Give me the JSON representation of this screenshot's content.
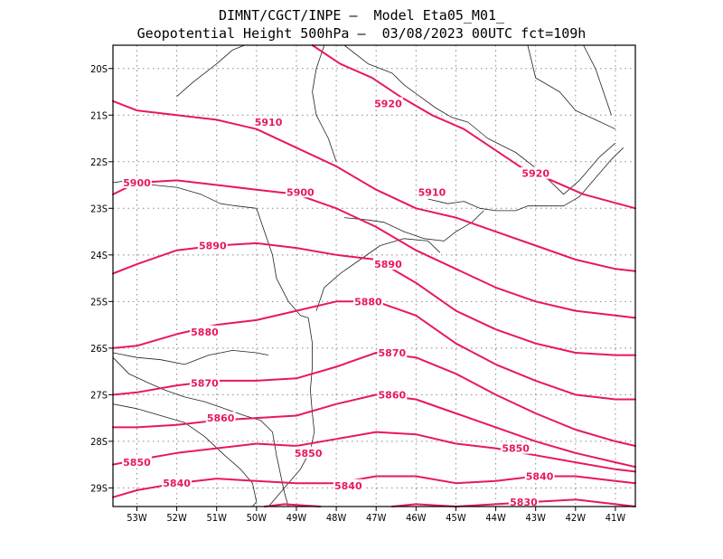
{
  "header": {
    "line1": "DIMNT/CGCT/INPE —  Model Eta05_M01_",
    "line2": "Geopotential Height 500hPa —  03/08/2023 00UTC fct=109h"
  },
  "colors": {
    "contour": "#e8185c",
    "coast": "#222222",
    "grid": "#888888",
    "frame": "#000000"
  },
  "map": {
    "lon_range": [
      -53.6,
      -40.5
    ],
    "lat_range": [
      -29.4,
      -19.5
    ],
    "x_ticks": [
      {
        "lon": -53,
        "label": "53W"
      },
      {
        "lon": -52,
        "label": "52W"
      },
      {
        "lon": -51,
        "label": "51W"
      },
      {
        "lon": -50,
        "label": "50W"
      },
      {
        "lon": -49,
        "label": "49W"
      },
      {
        "lon": -48,
        "label": "48W"
      },
      {
        "lon": -47,
        "label": "47W"
      },
      {
        "lon": -46,
        "label": "46W"
      },
      {
        "lon": -45,
        "label": "45W"
      },
      {
        "lon": -44,
        "label": "44W"
      },
      {
        "lon": -43,
        "label": "43W"
      },
      {
        "lon": -42,
        "label": "42W"
      },
      {
        "lon": -41,
        "label": "41W"
      }
    ],
    "y_ticks": [
      {
        "lat": -20,
        "label": "20S"
      },
      {
        "lat": -21,
        "label": "21S"
      },
      {
        "lat": -22,
        "label": "22S"
      },
      {
        "lat": -23,
        "label": "23S"
      },
      {
        "lat": -24,
        "label": "24S"
      },
      {
        "lat": -25,
        "label": "25S"
      },
      {
        "lat": -26,
        "label": "26S"
      },
      {
        "lat": -27,
        "label": "27S"
      },
      {
        "lat": -28,
        "label": "28S"
      },
      {
        "lat": -29,
        "label": "29S"
      }
    ],
    "grid": true
  },
  "contours": [
    {
      "value": 5920,
      "label": "5920",
      "points": [
        [
          -48.6,
          -19.5
        ],
        [
          -47.9,
          -19.9
        ],
        [
          -47.1,
          -20.2
        ],
        [
          -46.4,
          -20.6
        ],
        [
          -45.6,
          -21.0
        ],
        [
          -44.8,
          -21.3
        ],
        [
          -44.1,
          -21.7
        ],
        [
          -43.4,
          -22.1
        ],
        [
          -42.6,
          -22.4
        ],
        [
          -41.8,
          -22.7
        ],
        [
          -40.5,
          -23.0
        ]
      ],
      "labels": [
        {
          "text": "5920",
          "at": [
            -46.7,
            -20.75
          ]
        },
        {
          "text": "5920",
          "at": [
            -43.0,
            -22.25
          ]
        }
      ]
    },
    {
      "value": 5910,
      "label": "5910",
      "points": [
        [
          -53.6,
          -20.7
        ],
        [
          -53.0,
          -20.9
        ],
        [
          -52.0,
          -21.0
        ],
        [
          -51.0,
          -21.1
        ],
        [
          -50.0,
          -21.3
        ],
        [
          -49.0,
          -21.7
        ],
        [
          -48.0,
          -22.1
        ],
        [
          -47.0,
          -22.6
        ],
        [
          -46.0,
          -23.0
        ],
        [
          -45.0,
          -23.2
        ],
        [
          -44.0,
          -23.5
        ],
        [
          -43.0,
          -23.8
        ],
        [
          -42.0,
          -24.1
        ],
        [
          -41.0,
          -24.3
        ],
        [
          -40.5,
          -24.35
        ]
      ],
      "labels": [
        {
          "text": "5910",
          "at": [
            -49.7,
            -21.15
          ]
        },
        {
          "text": "5910",
          "at": [
            -45.6,
            -22.65
          ]
        }
      ]
    },
    {
      "value": 5900,
      "label": "5900",
      "points": [
        [
          -53.6,
          -22.7
        ],
        [
          -53.0,
          -22.45
        ],
        [
          -52.0,
          -22.4
        ],
        [
          -51.0,
          -22.5
        ],
        [
          -50.0,
          -22.6
        ],
        [
          -49.0,
          -22.7
        ],
        [
          -48.0,
          -23.0
        ],
        [
          -47.0,
          -23.4
        ],
        [
          -46.0,
          -23.9
        ],
        [
          -45.0,
          -24.3
        ],
        [
          -44.0,
          -24.7
        ],
        [
          -43.0,
          -25.0
        ],
        [
          -42.0,
          -25.2
        ],
        [
          -41.0,
          -25.3
        ],
        [
          -40.5,
          -25.35
        ]
      ],
      "labels": [
        {
          "text": "5900",
          "at": [
            -53.0,
            -22.45
          ]
        },
        {
          "text": "5900",
          "at": [
            -48.9,
            -22.65
          ]
        }
      ]
    },
    {
      "value": 5890,
      "label": "5890",
      "points": [
        [
          -53.6,
          -24.4
        ],
        [
          -53.0,
          -24.2
        ],
        [
          -52.0,
          -23.9
        ],
        [
          -51.0,
          -23.8
        ],
        [
          -50.0,
          -23.75
        ],
        [
          -49.0,
          -23.85
        ],
        [
          -48.0,
          -24.0
        ],
        [
          -47.0,
          -24.1
        ],
        [
          -46.0,
          -24.6
        ],
        [
          -45.0,
          -25.2
        ],
        [
          -44.0,
          -25.6
        ],
        [
          -43.0,
          -25.9
        ],
        [
          -42.0,
          -26.1
        ],
        [
          -41.0,
          -26.15
        ],
        [
          -40.5,
          -26.15
        ]
      ],
      "labels": [
        {
          "text": "5890",
          "at": [
            -51.1,
            -23.8
          ]
        },
        {
          "text": "5890",
          "at": [
            -46.7,
            -24.2
          ]
        }
      ]
    },
    {
      "value": 5880,
      "label": "5880",
      "points": [
        [
          -53.6,
          -26.0
        ],
        [
          -53.0,
          -25.95
        ],
        [
          -52.0,
          -25.7
        ],
        [
          -51.0,
          -25.5
        ],
        [
          -50.0,
          -25.4
        ],
        [
          -49.0,
          -25.2
        ],
        [
          -48.0,
          -25.0
        ],
        [
          -47.0,
          -25.0
        ],
        [
          -46.0,
          -25.3
        ],
        [
          -45.0,
          -25.9
        ],
        [
          -44.0,
          -26.35
        ],
        [
          -43.0,
          -26.7
        ],
        [
          -42.0,
          -27.0
        ],
        [
          -41.0,
          -27.1
        ],
        [
          -40.5,
          -27.1
        ]
      ],
      "labels": [
        {
          "text": "5880",
          "at": [
            -51.3,
            -25.65
          ]
        },
        {
          "text": "5880",
          "at": [
            -47.2,
            -25.0
          ]
        }
      ]
    },
    {
      "value": 5870,
      "label": "5870",
      "points": [
        [
          -53.6,
          -27.0
        ],
        [
          -53.0,
          -26.95
        ],
        [
          -52.0,
          -26.8
        ],
        [
          -51.0,
          -26.7
        ],
        [
          -50.0,
          -26.7
        ],
        [
          -49.0,
          -26.65
        ],
        [
          -48.0,
          -26.4
        ],
        [
          -47.0,
          -26.1
        ],
        [
          -46.0,
          -26.2
        ],
        [
          -45.0,
          -26.55
        ],
        [
          -44.0,
          -27.0
        ],
        [
          -43.0,
          -27.4
        ],
        [
          -42.0,
          -27.75
        ],
        [
          -41.0,
          -28.0
        ],
        [
          -40.5,
          -28.1
        ]
      ],
      "labels": [
        {
          "text": "5870",
          "at": [
            -51.3,
            -26.75
          ]
        },
        {
          "text": "5870",
          "at": [
            -46.6,
            -26.1
          ]
        }
      ]
    },
    {
      "value": 5860,
      "label": "5860",
      "points": [
        [
          -53.6,
          -27.7
        ],
        [
          -53.0,
          -27.7
        ],
        [
          -52.0,
          -27.65
        ],
        [
          -51.0,
          -27.55
        ],
        [
          -50.0,
          -27.5
        ],
        [
          -49.0,
          -27.45
        ],
        [
          -48.0,
          -27.2
        ],
        [
          -47.0,
          -27.0
        ],
        [
          -46.0,
          -27.1
        ],
        [
          -45.0,
          -27.4
        ],
        [
          -44.0,
          -27.7
        ],
        [
          -43.0,
          -28.0
        ],
        [
          -42.0,
          -28.25
        ],
        [
          -41.0,
          -28.45
        ],
        [
          -40.5,
          -28.55
        ]
      ],
      "labels": [
        {
          "text": "5860",
          "at": [
            -50.9,
            -27.5
          ]
        },
        {
          "text": "5860",
          "at": [
            -46.6,
            -27.0
          ]
        }
      ]
    },
    {
      "value": 5850,
      "label": "5850",
      "points": [
        [
          -53.6,
          -28.5
        ],
        [
          -53.0,
          -28.4
        ],
        [
          -52.0,
          -28.25
        ],
        [
          -51.0,
          -28.15
        ],
        [
          -50.0,
          -28.05
        ],
        [
          -49.0,
          -28.1
        ],
        [
          -48.0,
          -27.95
        ],
        [
          -47.0,
          -27.8
        ],
        [
          -46.0,
          -27.85
        ],
        [
          -45.0,
          -28.05
        ],
        [
          -44.0,
          -28.15
        ],
        [
          -43.0,
          -28.3
        ],
        [
          -42.0,
          -28.45
        ],
        [
          -41.0,
          -28.6
        ],
        [
          -40.5,
          -28.65
        ]
      ],
      "labels": [
        {
          "text": "5850",
          "at": [
            -53.0,
            -28.45
          ]
        },
        {
          "text": "5850",
          "at": [
            -48.7,
            -28.25
          ]
        },
        {
          "text": "5850",
          "at": [
            -43.5,
            -28.15
          ]
        }
      ]
    },
    {
      "value": 5840,
      "label": "5840",
      "points": [
        [
          -53.6,
          -29.2
        ],
        [
          -53.0,
          -29.05
        ],
        [
          -52.0,
          -28.9
        ],
        [
          -51.0,
          -28.8
        ],
        [
          -50.0,
          -28.85
        ],
        [
          -49.0,
          -28.9
        ],
        [
          -48.0,
          -28.9
        ],
        [
          -47.0,
          -28.75
        ],
        [
          -46.0,
          -28.75
        ],
        [
          -45.0,
          -28.9
        ],
        [
          -44.0,
          -28.85
        ],
        [
          -43.0,
          -28.75
        ],
        [
          -42.0,
          -28.75
        ],
        [
          -41.0,
          -28.85
        ],
        [
          -40.5,
          -28.9
        ]
      ],
      "labels": [
        {
          "text": "5840",
          "at": [
            -52.0,
            -28.9
          ]
        },
        {
          "text": "5840",
          "at": [
            -47.7,
            -28.95
          ]
        },
        {
          "text": "5840",
          "at": [
            -42.9,
            -28.75
          ]
        }
      ]
    },
    {
      "value": 5830,
      "label": "5830",
      "points": [
        [
          -49.8,
          -29.4
        ],
        [
          -49.3,
          -29.35
        ],
        [
          -48.4,
          -29.4
        ]
      ],
      "labels": [
        {
          "text": "5830",
          "at": [
            -43.3,
            -29.3
          ]
        }
      ]
    },
    {
      "value": 5830,
      "label": "",
      "points": [
        [
          -46.6,
          -29.4
        ],
        [
          -46.0,
          -29.35
        ],
        [
          -45.0,
          -29.4
        ],
        [
          -44.0,
          -29.35
        ],
        [
          -43.0,
          -29.3
        ],
        [
          -42.0,
          -29.25
        ],
        [
          -41.0,
          -29.35
        ],
        [
          -40.5,
          -29.45
        ]
      ],
      "labels": []
    }
  ],
  "coast_lines": [
    [
      [
        -47.8,
        -19.5
      ],
      [
        -47.2,
        -19.9
      ],
      [
        -46.6,
        -20.1
      ],
      [
        -46.3,
        -20.35
      ],
      [
        -45.9,
        -20.6
      ],
      [
        -45.5,
        -20.85
      ],
      [
        -45.1,
        -21.05
      ],
      [
        -44.7,
        -21.15
      ],
      [
        -44.2,
        -21.5
      ],
      [
        -43.5,
        -21.8
      ],
      [
        -42.9,
        -22.2
      ],
      [
        -42.3,
        -22.7
      ],
      [
        -41.9,
        -22.4
      ],
      [
        -41.4,
        -21.9
      ],
      [
        -41.0,
        -21.6
      ]
    ],
    [
      [
        -43.2,
        -19.5
      ],
      [
        -43.0,
        -20.2
      ],
      [
        -42.4,
        -20.5
      ],
      [
        -42.0,
        -20.9
      ],
      [
        -41.5,
        -21.1
      ],
      [
        -41.0,
        -21.3
      ]
    ],
    [
      [
        -45.7,
        -22.8
      ],
      [
        -45.2,
        -22.9
      ],
      [
        -44.8,
        -22.85
      ],
      [
        -44.4,
        -23.0
      ],
      [
        -44.0,
        -23.05
      ],
      [
        -43.5,
        -23.05
      ],
      [
        -43.2,
        -22.95
      ],
      [
        -42.8,
        -22.95
      ],
      [
        -42.3,
        -22.95
      ],
      [
        -41.9,
        -22.75
      ],
      [
        -41.5,
        -22.35
      ],
      [
        -41.1,
        -21.95
      ],
      [
        -40.8,
        -21.7
      ]
    ],
    [
      [
        -47.8,
        -23.2
      ],
      [
        -47.2,
        -23.25
      ],
      [
        -46.8,
        -23.3
      ],
      [
        -46.3,
        -23.5
      ],
      [
        -45.8,
        -23.65
      ],
      [
        -45.3,
        -23.7
      ],
      [
        -45.0,
        -23.5
      ],
      [
        -44.6,
        -23.3
      ],
      [
        -44.3,
        -23.05
      ]
    ],
    [
      [
        -48.5,
        -25.2
      ],
      [
        -48.3,
        -24.7
      ],
      [
        -47.9,
        -24.4
      ],
      [
        -47.4,
        -24.1
      ],
      [
        -46.9,
        -23.8
      ],
      [
        -46.3,
        -23.65
      ],
      [
        -45.7,
        -23.7
      ],
      [
        -45.4,
        -23.95
      ]
    ],
    [
      [
        -48.7,
        -25.35
      ],
      [
        -48.6,
        -25.9
      ],
      [
        -48.6,
        -26.4
      ],
      [
        -48.65,
        -26.9
      ],
      [
        -48.6,
        -27.4
      ],
      [
        -48.55,
        -27.8
      ],
      [
        -48.65,
        -28.2
      ],
      [
        -48.9,
        -28.6
      ],
      [
        -49.3,
        -29.0
      ],
      [
        -49.7,
        -29.4
      ]
    ],
    [
      [
        -50.0,
        -23.0
      ],
      [
        -49.8,
        -23.5
      ],
      [
        -49.6,
        -24.0
      ],
      [
        -49.5,
        -24.5
      ],
      [
        -49.2,
        -25.0
      ],
      [
        -48.9,
        -25.3
      ],
      [
        -48.7,
        -25.35
      ]
    ],
    [
      [
        -53.6,
        -22.45
      ],
      [
        -53.2,
        -22.4
      ],
      [
        -52.6,
        -22.5
      ],
      [
        -52.0,
        -22.55
      ],
      [
        -51.4,
        -22.7
      ],
      [
        -50.9,
        -22.9
      ],
      [
        -50.5,
        -22.95
      ],
      [
        -50.0,
        -23.0
      ]
    ],
    [
      [
        -52.0,
        -20.6
      ],
      [
        -51.6,
        -20.3
      ],
      [
        -51.0,
        -19.9
      ],
      [
        -50.6,
        -19.6
      ],
      [
        -50.3,
        -19.5
      ]
    ],
    [
      [
        -53.6,
        -26.1
      ],
      [
        -53.0,
        -26.2
      ],
      [
        -52.4,
        -26.25
      ],
      [
        -51.8,
        -26.35
      ],
      [
        -51.2,
        -26.15
      ],
      [
        -50.6,
        -26.05
      ],
      [
        -50.0,
        -26.1
      ],
      [
        -49.7,
        -26.15
      ]
    ],
    [
      [
        -53.6,
        -26.2
      ],
      [
        -53.2,
        -26.55
      ],
      [
        -52.7,
        -26.75
      ],
      [
        -52.3,
        -26.9
      ],
      [
        -51.8,
        -27.05
      ],
      [
        -51.3,
        -27.15
      ],
      [
        -50.8,
        -27.3
      ],
      [
        -50.3,
        -27.45
      ],
      [
        -49.9,
        -27.55
      ],
      [
        -49.6,
        -27.8
      ],
      [
        -49.5,
        -28.3
      ],
      [
        -49.4,
        -28.7
      ],
      [
        -49.3,
        -29.1
      ],
      [
        -49.2,
        -29.4
      ]
    ],
    [
      [
        -53.6,
        -27.2
      ],
      [
        -53.0,
        -27.3
      ],
      [
        -52.4,
        -27.45
      ],
      [
        -51.8,
        -27.6
      ],
      [
        -51.3,
        -27.9
      ],
      [
        -50.8,
        -28.3
      ],
      [
        -50.4,
        -28.6
      ],
      [
        -50.1,
        -28.9
      ],
      [
        -50.0,
        -29.3
      ],
      [
        -50.1,
        -29.4
      ]
    ],
    [
      [
        -48.3,
        -19.5
      ],
      [
        -48.5,
        -20.0
      ],
      [
        -48.6,
        -20.5
      ],
      [
        -48.5,
        -21.0
      ],
      [
        -48.2,
        -21.5
      ],
      [
        -48.0,
        -22.0
      ]
    ],
    [
      [
        -41.8,
        -19.5
      ],
      [
        -41.5,
        -20.0
      ],
      [
        -41.3,
        -20.5
      ],
      [
        -41.1,
        -21.0
      ]
    ]
  ]
}
